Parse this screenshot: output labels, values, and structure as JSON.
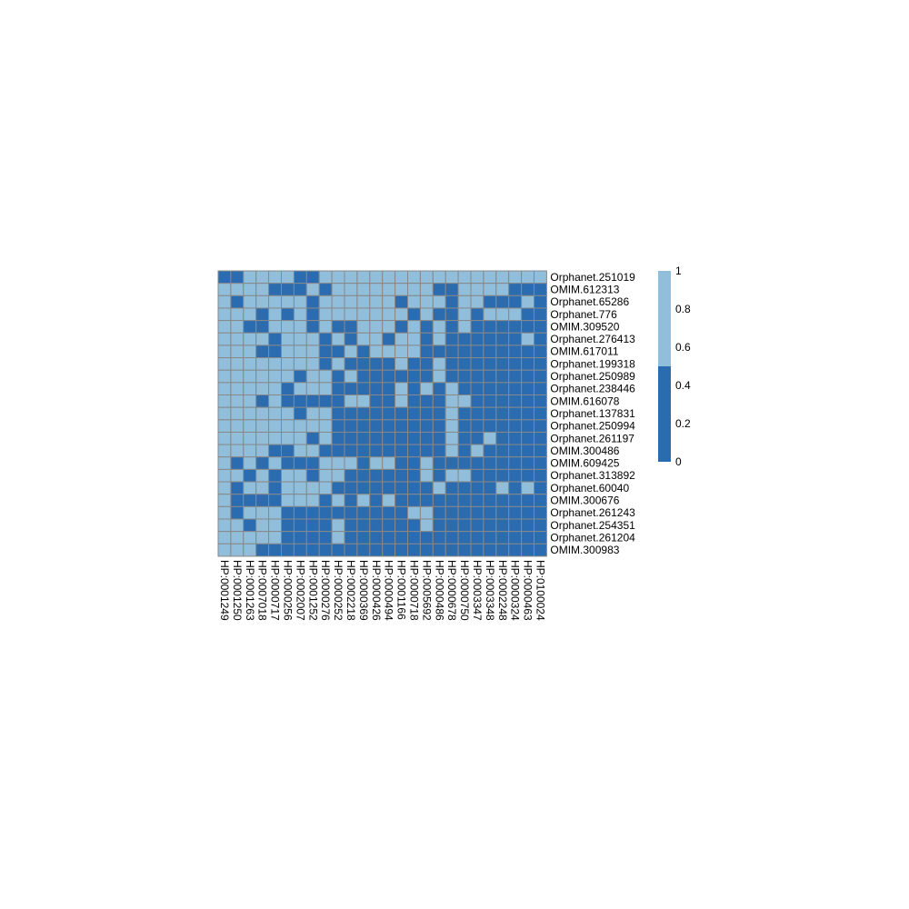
{
  "chart_data": {
    "type": "heatmap",
    "title": "",
    "colors": {
      "high": "#91bfdb",
      "low": "#2b6cb0",
      "grid": "#888888"
    },
    "legend": {
      "position": "right",
      "ticks": [
        "1",
        "0.8",
        "0.6",
        "0.4",
        "0.2",
        "0"
      ],
      "break_value": 0.5
    },
    "rows": [
      "Orphanet.251019",
      "OMIM.612313",
      "Orphanet.65286",
      "Orphanet.776",
      "OMIM.309520",
      "Orphanet.276413",
      "OMIM.617011",
      "Orphanet.199318",
      "Orphanet.250989",
      "Orphanet.238446",
      "OMIM.616078",
      "Orphanet.137831",
      "Orphanet.250994",
      "Orphanet.261197",
      "OMIM.300486",
      "OMIM.609425",
      "Orphanet.313892",
      "Orphanet.60040",
      "OMIM.300676",
      "Orphanet.261243",
      "Orphanet.254351",
      "Orphanet.261204",
      "OMIM.300983"
    ],
    "columns": [
      "HP:0001249",
      "HP:0001250",
      "HP:0001263",
      "HP:0007018",
      "HP:0000717",
      "HP:0000256",
      "HP:0002007",
      "HP:0001252",
      "HP:0000276",
      "HP:0000252",
      "HP:0002218",
      "HP:0000369",
      "HP:0000426",
      "HP:0000494",
      "HP:0001166",
      "HP:0000718",
      "HP:0005692",
      "HP:0000486",
      "HP:0000678",
      "HP:0000750",
      "HP:0003347",
      "HP:0003348",
      "HP:0002248",
      "HP:0000324",
      "HP:0000463",
      "HP:0100024"
    ],
    "values": [
      [
        0,
        0,
        1,
        1,
        1,
        1,
        0,
        0,
        1,
        1,
        1,
        1,
        1,
        1,
        1,
        1,
        1,
        1,
        1,
        1,
        1,
        1,
        1,
        1,
        1,
        1
      ],
      [
        1,
        1,
        1,
        1,
        0,
        0,
        0,
        1,
        0,
        1,
        1,
        1,
        1,
        1,
        1,
        1,
        1,
        0,
        0,
        1,
        1,
        1,
        1,
        0,
        0,
        0
      ],
      [
        1,
        0,
        1,
        1,
        1,
        1,
        1,
        0,
        1,
        1,
        1,
        1,
        1,
        1,
        0,
        1,
        1,
        1,
        0,
        1,
        1,
        0,
        0,
        0,
        1,
        0
      ],
      [
        1,
        1,
        1,
        0,
        1,
        0,
        1,
        0,
        1,
        1,
        1,
        1,
        1,
        1,
        1,
        0,
        1,
        0,
        0,
        1,
        0,
        1,
        1,
        1,
        0,
        0
      ],
      [
        1,
        1,
        0,
        0,
        1,
        1,
        1,
        0,
        1,
        0,
        0,
        1,
        1,
        1,
        0,
        1,
        0,
        1,
        0,
        1,
        0,
        0,
        0,
        0,
        0,
        0
      ],
      [
        1,
        1,
        1,
        1,
        0,
        1,
        1,
        1,
        0,
        1,
        0,
        1,
        1,
        0,
        1,
        1,
        0,
        1,
        0,
        0,
        0,
        0,
        0,
        0,
        1,
        0
      ],
      [
        1,
        1,
        1,
        0,
        0,
        1,
        1,
        1,
        0,
        0,
        1,
        0,
        1,
        1,
        1,
        1,
        0,
        0,
        0,
        0,
        0,
        0,
        0,
        0,
        0,
        0
      ],
      [
        1,
        1,
        1,
        1,
        1,
        1,
        1,
        1,
        0,
        1,
        0,
        0,
        0,
        0,
        1,
        0,
        0,
        1,
        0,
        0,
        0,
        0,
        0,
        0,
        0,
        0
      ],
      [
        1,
        1,
        1,
        1,
        1,
        1,
        0,
        1,
        1,
        0,
        1,
        0,
        0,
        0,
        0,
        0,
        0,
        1,
        0,
        0,
        0,
        0,
        0,
        0,
        0,
        0
      ],
      [
        1,
        1,
        1,
        1,
        1,
        0,
        1,
        1,
        1,
        0,
        0,
        0,
        0,
        0,
        1,
        0,
        1,
        0,
        1,
        0,
        0,
        0,
        0,
        0,
        0,
        0
      ],
      [
        1,
        1,
        1,
        0,
        1,
        0,
        0,
        0,
        0,
        0,
        1,
        1,
        0,
        0,
        1,
        0,
        0,
        0,
        1,
        1,
        0,
        0,
        0,
        0,
        0,
        0
      ],
      [
        1,
        1,
        1,
        1,
        1,
        1,
        0,
        1,
        1,
        0,
        0,
        0,
        0,
        0,
        0,
        0,
        0,
        0,
        1,
        0,
        0,
        0,
        0,
        0,
        0,
        0
      ],
      [
        1,
        1,
        1,
        1,
        1,
        1,
        1,
        1,
        1,
        0,
        0,
        0,
        0,
        0,
        0,
        0,
        0,
        0,
        1,
        0,
        0,
        0,
        0,
        0,
        0,
        0
      ],
      [
        1,
        1,
        1,
        1,
        1,
        1,
        1,
        0,
        1,
        0,
        0,
        0,
        0,
        0,
        0,
        0,
        0,
        0,
        1,
        0,
        0,
        1,
        0,
        0,
        0,
        0
      ],
      [
        1,
        1,
        1,
        1,
        0,
        0,
        1,
        1,
        0,
        0,
        0,
        0,
        0,
        0,
        0,
        0,
        0,
        0,
        1,
        0,
        1,
        0,
        0,
        0,
        0,
        0
      ],
      [
        1,
        0,
        1,
        0,
        1,
        0,
        0,
        0,
        1,
        1,
        1,
        0,
        1,
        1,
        0,
        0,
        1,
        0,
        0,
        0,
        0,
        0,
        0,
        0,
        0,
        0
      ],
      [
        1,
        1,
        0,
        1,
        0,
        1,
        1,
        0,
        1,
        1,
        0,
        0,
        0,
        0,
        0,
        0,
        1,
        0,
        1,
        1,
        0,
        0,
        0,
        0,
        0,
        0
      ],
      [
        1,
        0,
        1,
        1,
        0,
        1,
        1,
        1,
        1,
        0,
        0,
        0,
        0,
        0,
        0,
        0,
        0,
        1,
        0,
        0,
        0,
        0,
        1,
        0,
        1,
        0
      ],
      [
        1,
        0,
        0,
        0,
        0,
        1,
        1,
        1,
        0,
        1,
        0,
        1,
        0,
        1,
        0,
        0,
        0,
        0,
        0,
        0,
        0,
        0,
        0,
        0,
        0,
        0
      ],
      [
        1,
        0,
        1,
        1,
        1,
        0,
        0,
        0,
        0,
        0,
        0,
        0,
        0,
        0,
        0,
        1,
        1,
        0,
        0,
        0,
        0,
        0,
        0,
        0,
        0,
        0
      ],
      [
        1,
        1,
        0,
        1,
        1,
        0,
        0,
        0,
        0,
        1,
        0,
        0,
        0,
        0,
        0,
        0,
        1,
        0,
        0,
        0,
        0,
        0,
        0,
        0,
        0,
        0
      ],
      [
        1,
        1,
        1,
        1,
        1,
        0,
        0,
        0,
        0,
        1,
        0,
        0,
        0,
        0,
        0,
        0,
        0,
        0,
        0,
        0,
        0,
        0,
        0,
        0,
        0,
        0
      ],
      [
        1,
        1,
        1,
        0,
        0,
        0,
        0,
        0,
        0,
        0,
        0,
        0,
        0,
        0,
        0,
        0,
        0,
        0,
        0,
        0,
        0,
        0,
        0,
        0,
        0,
        0
      ]
    ]
  }
}
